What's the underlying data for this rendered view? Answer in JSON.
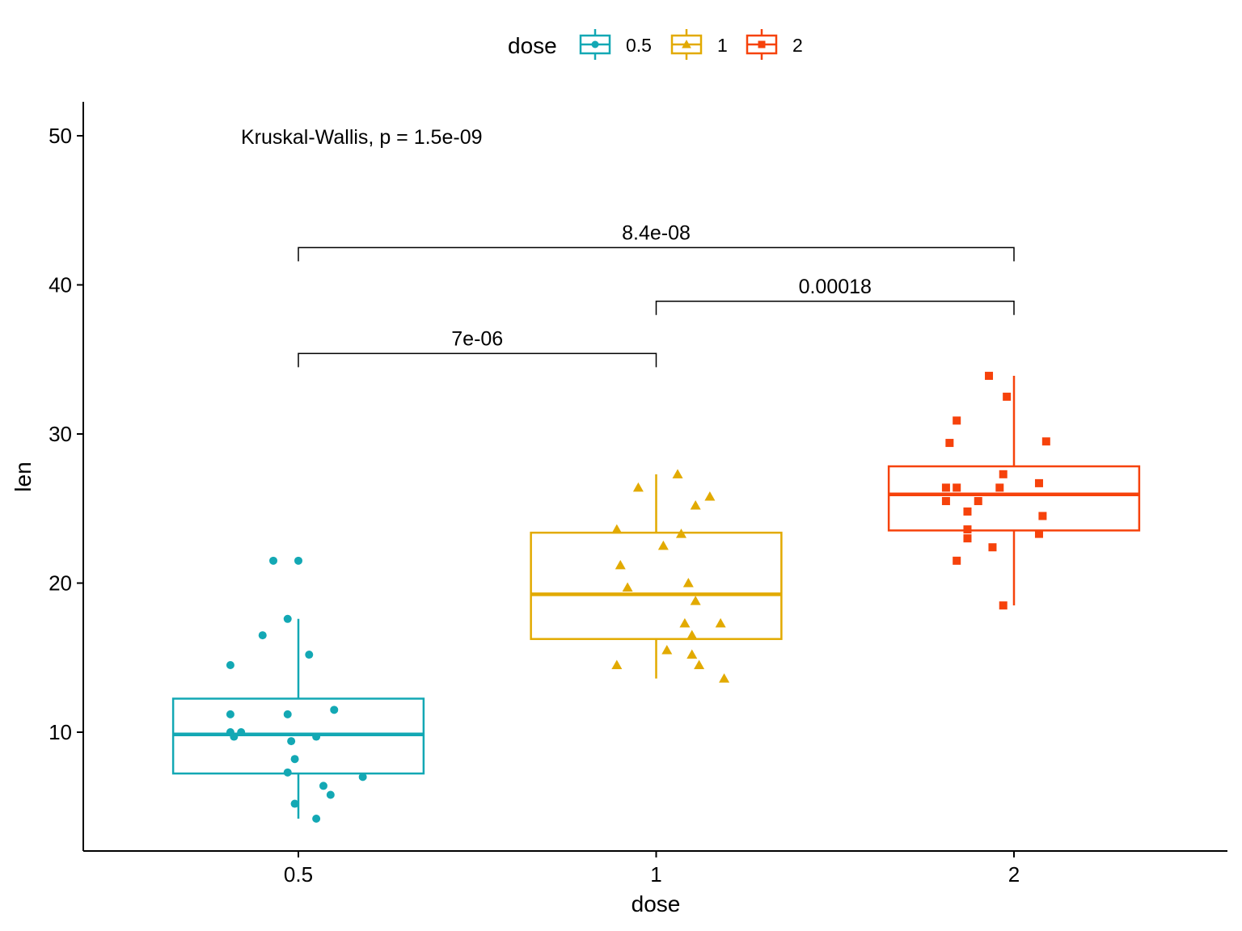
{
  "chart_data": {
    "type": "box",
    "xlabel": "dose",
    "ylabel": "len",
    "categories": [
      "0.5",
      "1",
      "2"
    ],
    "yticks": [
      10,
      20,
      30,
      40,
      50
    ],
    "ylim": [
      2,
      52.5
    ],
    "legend": {
      "title": "dose",
      "position": "top",
      "entries": [
        "0.5",
        "1",
        "2"
      ]
    },
    "colors": [
      "#13A8B4",
      "#E2AA00",
      "#F6420B"
    ],
    "global_test": "Kruskal-Wallis, p = 1.5e-09",
    "boxes": [
      {
        "q1": 7.23,
        "median": 9.85,
        "q3": 12.25,
        "whisker_low": 4.2,
        "whisker_high": 17.6
      },
      {
        "q1": 16.25,
        "median": 19.25,
        "q3": 23.38,
        "whisker_low": 13.6,
        "whisker_high": 27.3
      },
      {
        "q1": 23.53,
        "median": 25.95,
        "q3": 27.83,
        "whisker_low": 18.5,
        "whisker_high": 33.9
      }
    ],
    "points": [
      [
        [
          -0.07,
          21.5
        ],
        [
          0,
          21.5
        ],
        [
          -0.03,
          17.6
        ],
        [
          -0.1,
          16.5
        ],
        [
          0.03,
          15.2
        ],
        [
          -0.19,
          14.5
        ],
        [
          0.1,
          11.5
        ],
        [
          -0.19,
          11.2
        ],
        [
          -0.03,
          11.2
        ],
        [
          -0.16,
          10
        ],
        [
          -0.19,
          10
        ],
        [
          -0.18,
          9.7
        ],
        [
          0.05,
          9.7
        ],
        [
          -0.02,
          9.4
        ],
        [
          -0.01,
          8.2
        ],
        [
          -0.03,
          7.3
        ],
        [
          0.18,
          7.0
        ],
        [
          0.07,
          6.4
        ],
        [
          0.09,
          5.8
        ],
        [
          -0.01,
          5.2
        ],
        [
          0.05,
          4.2
        ]
      ],
      [
        [
          0.06,
          27.3
        ],
        [
          -0.05,
          26.4
        ],
        [
          0.15,
          25.8
        ],
        [
          0.11,
          25.2
        ],
        [
          -0.11,
          23.6
        ],
        [
          0.07,
          23.3
        ],
        [
          0.02,
          22.5
        ],
        [
          -0.1,
          21.2
        ],
        [
          0.09,
          20
        ],
        [
          -0.08,
          19.7
        ],
        [
          0.11,
          18.8
        ],
        [
          0.08,
          17.3
        ],
        [
          0.18,
          17.3
        ],
        [
          0.1,
          16.5
        ],
        [
          0.1,
          16.5
        ],
        [
          0.03,
          15.5
        ],
        [
          0.1,
          15.2
        ],
        [
          -0.11,
          14.5
        ],
        [
          0.12,
          14.5
        ],
        [
          0.19,
          13.6
        ]
      ],
      [
        [
          -0.07,
          33.9
        ],
        [
          -0.02,
          32.5
        ],
        [
          -0.16,
          30.9
        ],
        [
          0.09,
          29.5
        ],
        [
          -0.18,
          29.4
        ],
        [
          -0.03,
          27.3
        ],
        [
          0.07,
          26.7
        ],
        [
          -0.19,
          26.4
        ],
        [
          -0.16,
          26.4
        ],
        [
          -0.04,
          26.4
        ],
        [
          -0.19,
          25.5
        ],
        [
          -0.1,
          25.5
        ],
        [
          -0.13,
          24.8
        ],
        [
          0.08,
          24.5
        ],
        [
          -0.13,
          23.6
        ],
        [
          0.07,
          23.3
        ],
        [
          -0.13,
          23.0
        ],
        [
          -0.06,
          22.4
        ],
        [
          -0.16,
          21.5
        ],
        [
          -0.03,
          18.5
        ]
      ]
    ],
    "comparisons": [
      {
        "from": 0,
        "to": 1,
        "y": 35.4,
        "label": "7e-06"
      },
      {
        "from": 1,
        "to": 2,
        "y": 38.9,
        "label": "0.00018"
      },
      {
        "from": 0,
        "to": 2,
        "y": 42.5,
        "label": "8.4e-08"
      }
    ]
  }
}
